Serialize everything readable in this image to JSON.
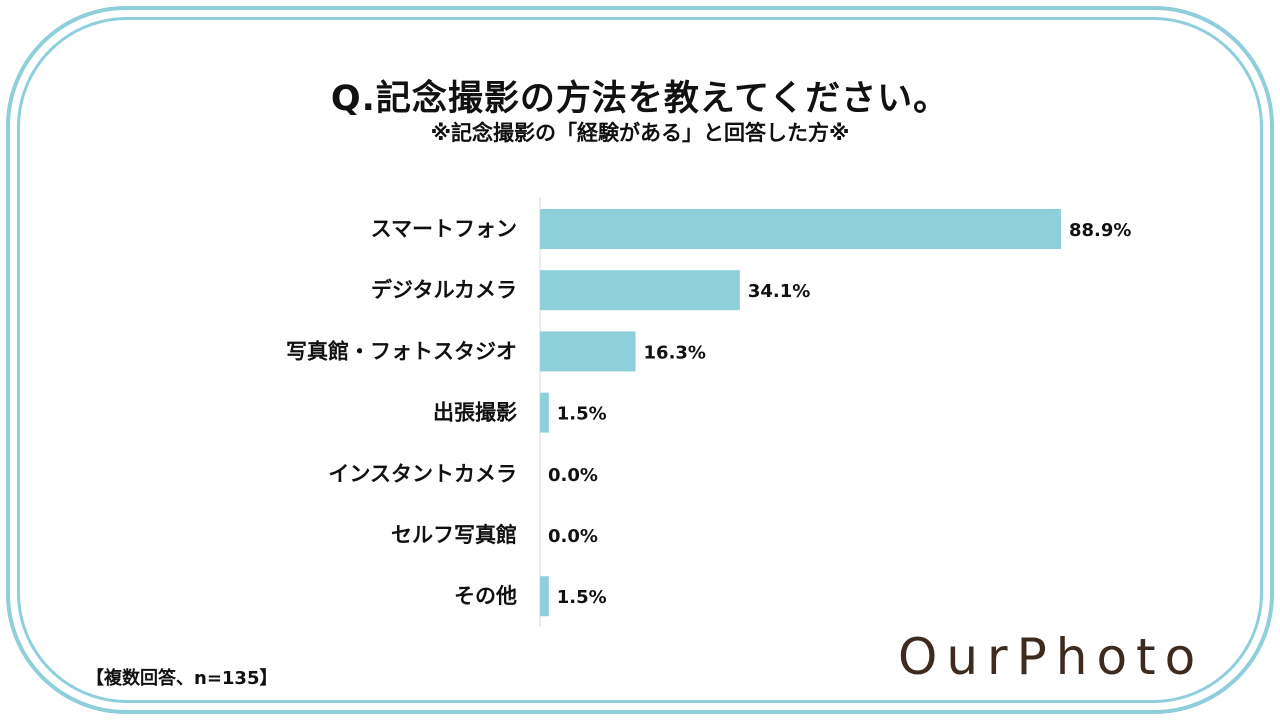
{
  "title": "Q.記念撮影の方法を教えてください。",
  "subtitle": "※記念撮影の「経験がある」と回答した方※",
  "footnote": "【複数回答、n=135】",
  "logo": "OurPhoto",
  "colors": {
    "bar": "#8ecfdc",
    "frame": "#8fcfdc",
    "logo": "#3d2b1f"
  },
  "chart_data": {
    "type": "bar",
    "orientation": "horizontal",
    "categories": [
      "スマートフォン",
      "デジタルカメラ",
      "写真館・フォトスタジオ",
      "出張撮影",
      "インスタントカメラ",
      "セルフ写真館",
      "その他"
    ],
    "values": [
      88.9,
      34.1,
      16.3,
      1.5,
      0.0,
      0.0,
      1.5
    ],
    "value_labels": [
      "88.9%",
      "34.1%",
      "16.3%",
      "1.5%",
      "0.0%",
      "0.0%",
      "1.5%"
    ],
    "xlim": [
      0,
      100
    ],
    "grid": false,
    "legend": "none"
  }
}
